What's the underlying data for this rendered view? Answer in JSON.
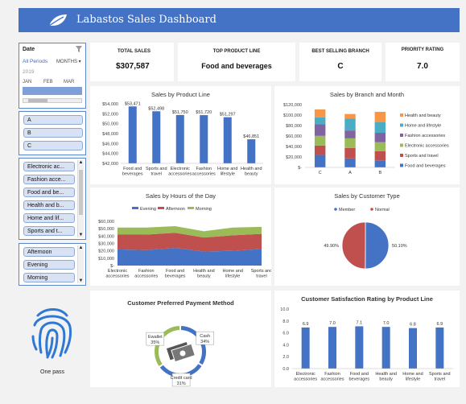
{
  "header": {
    "title": "Labastos Sales Dashboard"
  },
  "kpis": [
    {
      "label": "TOTAL SALES",
      "value": "$307,587"
    },
    {
      "label": "TOP PRODUCT LINE",
      "value": "Food and beverages"
    },
    {
      "label": "BEST SELLING BRANCH",
      "value": "C"
    },
    {
      "label": "PRIORITY RATING",
      "value": "7.0"
    }
  ],
  "date_slicer": {
    "label": "Date",
    "all_periods": "All Periods",
    "granularity": "MONTHS",
    "year": "2019",
    "months": [
      "JAN",
      "FEB",
      "MAR"
    ]
  },
  "branch_slicer": {
    "items": [
      "A",
      "B",
      "C"
    ]
  },
  "product_slicer": {
    "items": [
      "Electronic ac...",
      "Fashion acce...",
      "Food and be...",
      "Health and b...",
      "Home and lif...",
      "Sports and t..."
    ]
  },
  "time_slicer": {
    "items": [
      "Afternoon",
      "Evening",
      "Morning"
    ]
  },
  "fingerprint": {
    "label": "One pass"
  },
  "colors": {
    "accent": "#4472c4",
    "red": "#c0504d",
    "green": "#9bbb59",
    "orange": "#f79646",
    "purple": "#8064a2",
    "teal": "#4bacc6"
  },
  "chart_data": [
    {
      "type": "bar",
      "title": "Sales by Product Line",
      "categories": [
        "Food and beverages",
        "Sports and travel",
        "Electronic accessories",
        "Fashion accessories",
        "Home and lifestyle",
        "Health and beauty"
      ],
      "values": [
        53471,
        52498,
        51750,
        51720,
        51297,
        46851
      ],
      "data_labels": [
        "$53,471",
        "$52,498",
        "$51,750",
        "$51,720",
        "$51,297",
        "$46,851"
      ],
      "ylim": [
        42000,
        54000
      ],
      "yticks": [
        "$54,000",
        "$52,000",
        "$50,000",
        "$48,000",
        "$46,000",
        "$44,000",
        "$42,000"
      ]
    },
    {
      "type": "bar",
      "stacked": true,
      "title": "Sales by Branch and Month",
      "categories": [
        "C",
        "A",
        "B"
      ],
      "series": [
        {
          "name": "Food and beverages",
          "values": [
            23766,
            17163,
            12538
          ]
        },
        {
          "name": "Sports and travel",
          "values": [
            18000,
            20100,
            18500
          ]
        },
        {
          "name": "Electronic accessories",
          "values": [
            18500,
            18300,
            17100
          ]
        },
        {
          "name": "Fashion accessories",
          "values": [
            22000,
            15000,
            18000
          ]
        },
        {
          "name": "Home and lifestyle",
          "values": [
            13500,
            23000,
            20000
          ]
        },
        {
          "name": "Health and beauty",
          "values": [
            15000,
            8500,
            20100
          ]
        }
      ],
      "ylim": [
        0,
        120000
      ],
      "yticks": [
        "$120,000",
        "$100,000",
        "$80,000",
        "$60,000",
        "$40,000",
        "$20,000",
        "$-"
      ]
    },
    {
      "type": "area",
      "stacked": true,
      "title": "Sales by Hours of the Day",
      "categories": [
        "Electronic accessories",
        "Fashion accessories",
        "Food and beverages",
        "Health and beauty",
        "Home and lifestyle",
        "Sports and travel"
      ],
      "series": [
        {
          "name": "Evening",
          "values": [
            22000,
            21000,
            24000,
            19000,
            20000,
            22500
          ]
        },
        {
          "name": "Afternoon",
          "values": [
            20000,
            21000,
            20500,
            19000,
            21000,
            20500
          ]
        },
        {
          "name": "Morning",
          "values": [
            9500,
            9500,
            9000,
            8500,
            10500,
            9500
          ]
        }
      ],
      "ylim": [
        0,
        60000
      ],
      "yticks": [
        "$60,000",
        "$50,000",
        "$40,000",
        "$30,000",
        "$20,000",
        "$10,000",
        "$-"
      ]
    },
    {
      "type": "pie",
      "title": "Sales by Customer Type",
      "series": [
        {
          "name": "Member",
          "values": [
            50.1
          ],
          "label": "50.10%"
        },
        {
          "name": "Normal",
          "values": [
            49.9
          ],
          "label": "49.90%"
        }
      ]
    },
    {
      "type": "pie",
      "donut": true,
      "title": "Customer Preferred Payment Method",
      "series": [
        {
          "name": "Cash",
          "values": [
            34
          ],
          "label": "34%"
        },
        {
          "name": "Credit card",
          "values": [
            31
          ],
          "label": "31%"
        },
        {
          "name": "Ewallet",
          "values": [
            35
          ],
          "label": "35%"
        }
      ]
    },
    {
      "type": "bar",
      "title": "Customer Satisfaction Rating by Product Line",
      "categories": [
        "Electronic accessories",
        "Fashion accessories",
        "Food and beverages",
        "Health and beauty",
        "Home and lifestyle",
        "Sports and travel"
      ],
      "values": [
        6.9,
        7.0,
        7.1,
        7.0,
        6.8,
        6.9
      ],
      "data_labels": [
        "6.9",
        "7.0",
        "7.1",
        "7.0",
        "6.8",
        "6.9"
      ],
      "ylim": [
        0,
        10
      ],
      "yticks": [
        "10.0",
        "8.0",
        "6.0",
        "4.0",
        "2.0",
        "0.0"
      ]
    }
  ]
}
